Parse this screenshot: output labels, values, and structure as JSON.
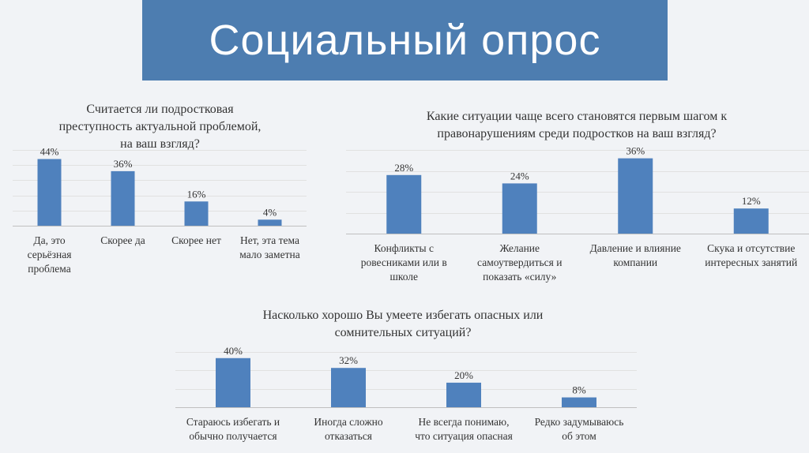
{
  "header": {
    "title": "Социальный опрос"
  },
  "colors": {
    "banner": "#4d7db0",
    "bar": "#4f81bd",
    "background": "#f1f3f6"
  },
  "chart_data": [
    {
      "type": "bar",
      "title": "Считается ли подростковая преступность актуальной проблемой, на ваш взгляд?",
      "title_lines": [
        "Считается ли подростковая",
        "преступность актуальной проблемой,",
        "на ваш взгляд?"
      ],
      "categories": [
        "Да, это серьёзная проблема",
        "Скорее да",
        "Скорее нет",
        "Нет, эта тема мало заметна"
      ],
      "category_lines": [
        [
          "Да, это",
          "серьёзная",
          "проблема"
        ],
        [
          "Скорее да"
        ],
        [
          "Скорее нет"
        ],
        [
          "Нет, эта тема",
          "мало заметна"
        ]
      ],
      "values": [
        44,
        36,
        16,
        4
      ],
      "data_labels": [
        "44%",
        "36%",
        "16%",
        "4%"
      ],
      "ylim": [
        0,
        50
      ],
      "grid": true
    },
    {
      "type": "bar",
      "title": "Какие ситуации чаще всего становятся первым шагом к правонарушениям среди подростков на ваш взгляд?",
      "title_lines": [
        "Какие ситуации чаще всего становятся первым шагом к",
        "правонарушениям среди подростков на ваш взгляд?"
      ],
      "categories": [
        "Конфликты с ровесниками или в школе",
        "Желание самоутвердиться и показать «силу»",
        "Давление и влияние компании",
        "Скука и отсутствие интересных занятий"
      ],
      "category_lines": [
        [
          "Конфликты с",
          "ровесниками или в",
          "школе"
        ],
        [
          "Желание",
          "самоутвердиться и",
          "показать «силу»"
        ],
        [
          "Давление и влияние",
          "компании"
        ],
        [
          "Скука и отсутствие",
          "интересных занятий"
        ]
      ],
      "values": [
        28,
        24,
        36,
        12
      ],
      "data_labels": [
        "28%",
        "24%",
        "36%",
        "12%"
      ],
      "ylim": [
        0,
        40
      ],
      "grid": true
    },
    {
      "type": "bar",
      "title": "Насколько хорошо Вы умеете избегать опасных или сомнительных ситуаций?",
      "title_lines": [
        "Насколько хорошо Вы умеете избегать опасных или",
        "сомнительных ситуаций?"
      ],
      "categories": [
        "Стараюсь избегать и обычно получается",
        "Иногда сложно отказаться",
        "Не всегда понимаю, что ситуация опасная",
        "Редко задумываюсь об этом"
      ],
      "category_lines": [
        [
          "Стараюсь избегать и",
          "обычно получается"
        ],
        [
          "Иногда сложно",
          "отказаться"
        ],
        [
          "Не всегда понимаю,",
          "что ситуация опасная"
        ],
        [
          "Редко задумываюсь",
          "об этом"
        ]
      ],
      "values": [
        40,
        32,
        20,
        8
      ],
      "data_labels": [
        "40%",
        "32%",
        "20%",
        "8%"
      ],
      "ylim": [
        0,
        45
      ],
      "grid": true
    }
  ]
}
